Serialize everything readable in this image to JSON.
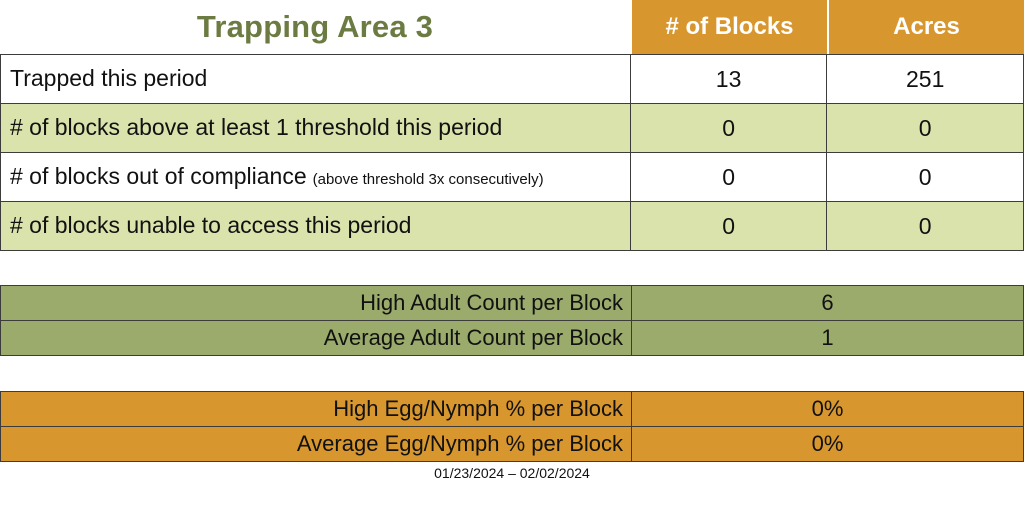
{
  "title": "Trapping Area 3",
  "date_range": "01/23/2024 – 02/02/2024",
  "colors": {
    "header_orange": "#D8962E",
    "row_light_green": "#DBE3AC",
    "adult_olive": "#9BAB6B",
    "title_green": "#6B7B41"
  },
  "main_table": {
    "columns": {
      "blocks": "# of Blocks",
      "acres": "Acres"
    },
    "rows": [
      {
        "label": "Trapped this period",
        "note": "",
        "blocks": "13",
        "acres": "251"
      },
      {
        "label": "# of blocks above at least 1 threshold this period",
        "note": "",
        "blocks": "0",
        "acres": "0"
      },
      {
        "label": "# of blocks out of compliance",
        "note": "(above threshold 3x consecutively)",
        "blocks": "0",
        "acres": "0"
      },
      {
        "label": "# of blocks unable to access this period",
        "note": "",
        "blocks": "0",
        "acres": "0"
      }
    ]
  },
  "adult_table": {
    "rows": [
      {
        "label": "High Adult Count per Block",
        "value": "6"
      },
      {
        "label": "Average Adult Count per Block",
        "value": "1"
      }
    ]
  },
  "egg_table": {
    "rows": [
      {
        "label": "High Egg/Nymph % per Block",
        "value": "0%"
      },
      {
        "label": "Average Egg/Nymph % per Block",
        "value": "0%"
      }
    ]
  }
}
